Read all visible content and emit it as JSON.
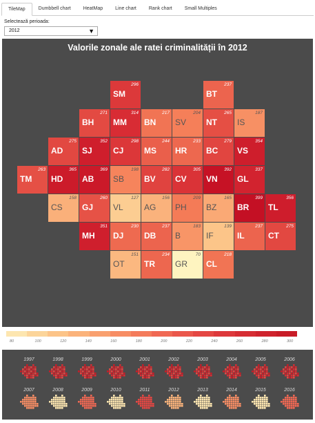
{
  "tabs": [
    {
      "label": "TileMap",
      "active": true
    },
    {
      "label": "Dumbbell chart",
      "active": false
    },
    {
      "label": "HeatMap",
      "active": false
    },
    {
      "label": "Line chart",
      "active": false
    },
    {
      "label": "Rank chart",
      "active": false
    },
    {
      "label": "Small Multiples",
      "active": false
    }
  ],
  "period": {
    "label": "Selectează perioada:",
    "value": "2012"
  },
  "map": {
    "title": "Valorile zonale ale ratei criminalității în 2012"
  },
  "legend": {
    "colors": [
      "#fde6b0",
      "#fcd59a",
      "#fcc488",
      "#fbb37b",
      "#f9a06f",
      "#f78d64",
      "#f47b5b",
      "#f06853",
      "#ea574b",
      "#e44743",
      "#dd383b",
      "#d62d33",
      "#cf232d",
      "#c81c27"
    ],
    "ticks": [
      "80",
      "100",
      "120",
      "140",
      "160",
      "180",
      "200",
      "220",
      "240",
      "260",
      "280",
      "300"
    ]
  },
  "tiles": [
    {
      "abbr": "SM",
      "value": "296",
      "col": 3,
      "row": 0
    },
    {
      "abbr": "BT",
      "value": "237",
      "col": 6,
      "row": 0
    },
    {
      "abbr": "BH",
      "value": "271",
      "col": 2,
      "row": 1
    },
    {
      "abbr": "MM",
      "value": "314",
      "col": 3,
      "row": 1
    },
    {
      "abbr": "BN",
      "value": "217",
      "col": 4,
      "row": 1
    },
    {
      "abbr": "SV",
      "value": "204",
      "col": 5,
      "row": 1
    },
    {
      "abbr": "NT",
      "value": "265",
      "col": 6,
      "row": 1
    },
    {
      "abbr": "IS",
      "value": "187",
      "col": 7,
      "row": 1
    },
    {
      "abbr": "AD",
      "value": "275",
      "col": 1,
      "row": 2
    },
    {
      "abbr": "SJ",
      "value": "352",
      "col": 2,
      "row": 2
    },
    {
      "abbr": "CJ",
      "value": "298",
      "col": 3,
      "row": 2
    },
    {
      "abbr": "MS",
      "value": "244",
      "col": 4,
      "row": 2
    },
    {
      "abbr": "HR",
      "value": "233",
      "col": 5,
      "row": 2
    },
    {
      "abbr": "BC",
      "value": "279",
      "col": 6,
      "row": 2
    },
    {
      "abbr": "VS",
      "value": "354",
      "col": 7,
      "row": 2
    },
    {
      "abbr": "TM",
      "value": "263",
      "col": 0,
      "row": 3
    },
    {
      "abbr": "HD",
      "value": "365",
      "col": 1,
      "row": 3
    },
    {
      "abbr": "AB",
      "value": "369",
      "col": 2,
      "row": 3
    },
    {
      "abbr": "SB",
      "value": "198",
      "col": 3,
      "row": 3
    },
    {
      "abbr": "BV",
      "value": "282",
      "col": 4,
      "row": 3
    },
    {
      "abbr": "CV",
      "value": "305",
      "col": 5,
      "row": 3
    },
    {
      "abbr": "VN",
      "value": "392",
      "col": 6,
      "row": 3
    },
    {
      "abbr": "GL",
      "value": "337",
      "col": 7,
      "row": 3
    },
    {
      "abbr": "CS",
      "value": "158",
      "col": 1,
      "row": 4
    },
    {
      "abbr": "GJ",
      "value": "260",
      "col": 2,
      "row": 4
    },
    {
      "abbr": "VL",
      "value": "127",
      "col": 3,
      "row": 4
    },
    {
      "abbr": "AG",
      "value": "156",
      "col": 4,
      "row": 4
    },
    {
      "abbr": "PH",
      "value": "209",
      "col": 5,
      "row": 4
    },
    {
      "abbr": "BZ",
      "value": "165",
      "col": 6,
      "row": 4
    },
    {
      "abbr": "BR",
      "value": "399",
      "col": 7,
      "row": 4
    },
    {
      "abbr": "TL",
      "value": "356",
      "col": 8,
      "row": 4
    },
    {
      "abbr": "MH",
      "value": "351",
      "col": 2,
      "row": 5
    },
    {
      "abbr": "DJ",
      "value": "230",
      "col": 3,
      "row": 5
    },
    {
      "abbr": "DB",
      "value": "237",
      "col": 4,
      "row": 5
    },
    {
      "abbr": "B",
      "value": "183",
      "col": 5,
      "row": 5
    },
    {
      "abbr": "IF",
      "value": "139",
      "col": 6,
      "row": 5
    },
    {
      "abbr": "IL",
      "value": "237",
      "col": 7,
      "row": 5
    },
    {
      "abbr": "CT",
      "value": "275",
      "col": 8,
      "row": 5
    },
    {
      "abbr": "OT",
      "value": "151",
      "col": 3,
      "row": 6
    },
    {
      "abbr": "TR",
      "value": "234",
      "col": 4,
      "row": 6
    },
    {
      "abbr": "GR",
      "value": "70",
      "col": 5,
      "row": 6
    },
    {
      "abbr": "CL",
      "value": "218",
      "col": 6,
      "row": 6
    }
  ],
  "small_multiples": {
    "years": [
      "1997",
      "1998",
      "1999",
      "2000",
      "2001",
      "2002",
      "2003",
      "2004",
      "2005",
      "2006",
      "2007",
      "2008",
      "2009",
      "2010",
      "2011",
      "2012",
      "2013",
      "2014",
      "2015",
      "2016"
    ]
  }
}
